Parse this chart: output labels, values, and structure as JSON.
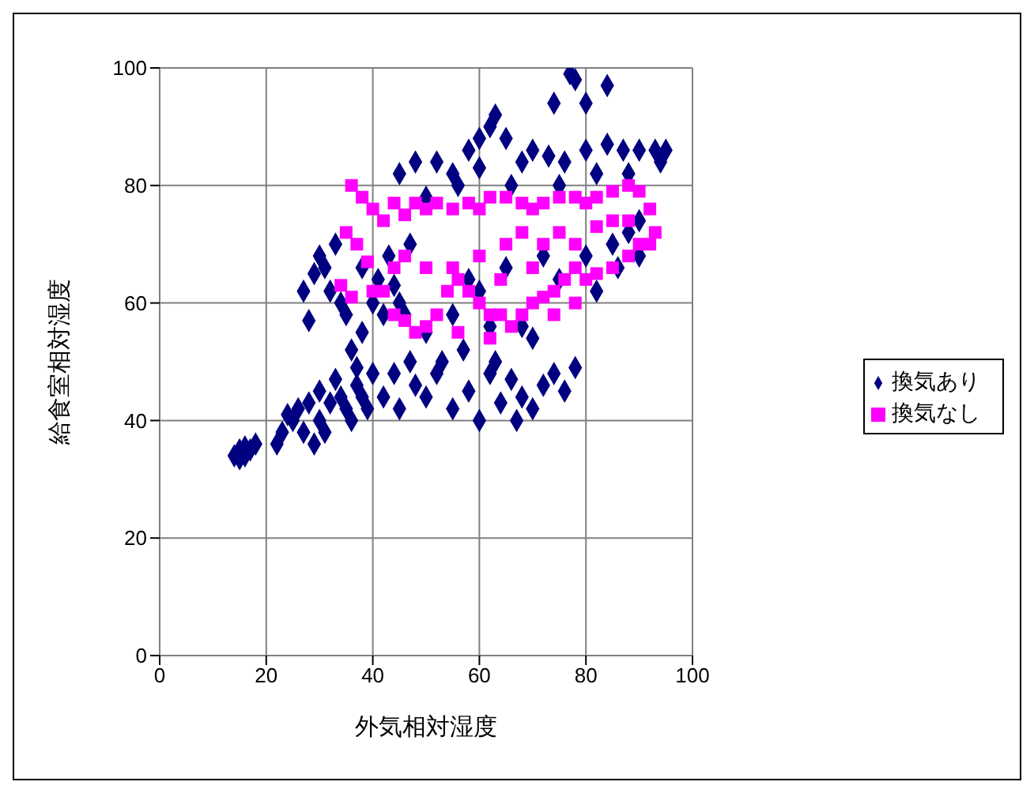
{
  "chart_data": {
    "type": "scatter",
    "xlabel": "外気相対湿度",
    "ylabel": "給食室相対湿度",
    "xlim": [
      0,
      100
    ],
    "ylim": [
      0,
      100
    ],
    "xticks": [
      0,
      20,
      40,
      60,
      80,
      100
    ],
    "yticks": [
      0,
      20,
      40,
      60,
      80,
      100
    ],
    "grid": true,
    "legend": "right",
    "series": [
      {
        "name": "換気あり",
        "color": "#000080",
        "marker": "diamond",
        "x": [
          14,
          15,
          16,
          17,
          18,
          15,
          16,
          22,
          23,
          24,
          25,
          26,
          27,
          28,
          29,
          30,
          30,
          31,
          32,
          33,
          34,
          35,
          36,
          37,
          38,
          39,
          40,
          27,
          28,
          29,
          30,
          31,
          32,
          33,
          34,
          35,
          36,
          37,
          38,
          38,
          40,
          41,
          42,
          43,
          44,
          45,
          46,
          47,
          42,
          45,
          48,
          50,
          52,
          55,
          58,
          60,
          62,
          64,
          66,
          68,
          70,
          72,
          74,
          76,
          78,
          67,
          63,
          57,
          53,
          47,
          44,
          50,
          55,
          60,
          65,
          70,
          75,
          80,
          85,
          88,
          72,
          68,
          62,
          58,
          82,
          86,
          90,
          90,
          45,
          48,
          52,
          55,
          58,
          60,
          62,
          65,
          68,
          70,
          73,
          76,
          80,
          84,
          87,
          90,
          93,
          95,
          94,
          88,
          82,
          75,
          66,
          56,
          50,
          60,
          77,
          78,
          84,
          80,
          74,
          63
        ],
        "values": [
          34,
          35,
          34,
          35,
          36,
          33.5,
          35.5,
          36,
          38,
          41,
          40,
          42,
          38,
          43,
          36,
          45,
          40,
          38,
          43,
          47,
          44,
          42,
          40,
          46,
          44,
          42,
          48,
          62,
          57,
          65,
          68,
          66,
          62,
          70,
          60,
          58,
          52,
          49,
          55,
          66,
          60,
          64,
          58,
          68,
          63,
          60,
          58,
          70,
          44,
          42,
          46,
          44,
          48,
          42,
          45,
          40,
          48,
          43,
          47,
          44,
          42,
          46,
          48,
          45,
          49,
          40,
          50,
          52,
          50,
          50,
          48,
          55,
          58,
          62,
          66,
          54,
          64,
          68,
          70,
          72,
          68,
          56,
          56,
          64,
          62,
          66,
          74,
          68,
          82,
          84,
          84,
          82,
          86,
          88,
          90,
          88,
          84,
          86,
          85,
          84,
          86,
          87,
          86,
          86,
          86,
          86,
          84,
          82,
          82,
          80,
          80,
          80,
          78,
          83,
          99,
          98,
          97,
          94,
          94,
          92
        ]
      },
      {
        "name": "換気なし",
        "color": "#ff00ff",
        "marker": "square",
        "x": [
          36,
          38,
          40,
          35,
          37,
          39,
          34,
          36,
          40,
          42,
          44,
          46,
          48,
          50,
          52,
          55,
          58,
          60,
          62,
          65,
          68,
          70,
          72,
          75,
          78,
          80,
          82,
          85,
          88,
          90,
          92,
          93,
          92,
          90,
          88,
          85,
          82,
          80,
          78,
          76,
          74,
          72,
          70,
          68,
          66,
          64,
          62,
          60,
          58,
          56,
          54,
          52,
          50,
          48,
          46,
          44,
          42,
          44,
          46,
          50,
          55,
          60,
          65,
          68,
          72,
          75,
          78,
          82,
          85,
          88,
          70,
          64,
          74,
          78,
          62,
          56
        ],
        "values": [
          80,
          78,
          76,
          72,
          70,
          67,
          63,
          61,
          62,
          74,
          77,
          75,
          77,
          76,
          77,
          76,
          77,
          76,
          78,
          78,
          77,
          76,
          77,
          78,
          78,
          77,
          78,
          79,
          80,
          79,
          76,
          72,
          70,
          70,
          68,
          66,
          65,
          64,
          66,
          64,
          62,
          61,
          60,
          58,
          56,
          58,
          58,
          60,
          62,
          64,
          62,
          58,
          56,
          55,
          57,
          58,
          62,
          66,
          68,
          66,
          66,
          68,
          70,
          72,
          70,
          72,
          70,
          73,
          74,
          74,
          66,
          64,
          58,
          60,
          54,
          55
        ]
      }
    ]
  }
}
